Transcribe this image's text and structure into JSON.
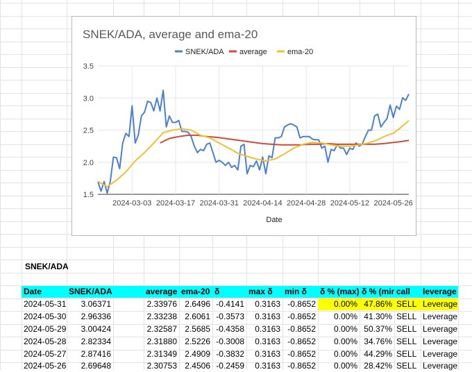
{
  "chart_data": {
    "type": "line",
    "title": "SNEK/ADA, average and ema-20",
    "xlabel": "Date",
    "ylabel": "",
    "ylim": [
      1.5,
      3.5
    ],
    "yticks": [
      "1.5",
      "2.0",
      "2.5",
      "3.0",
      "3.5"
    ],
    "x_start": "2024-02-21",
    "x_end": "2024-05-31",
    "xticks": [
      "2024-03-03",
      "2024-03-17",
      "2024-03-31",
      "2024-04-14",
      "2024-04-28",
      "2024-05-12",
      "2024-05-26"
    ],
    "grid": true,
    "legend_position": "top",
    "series": [
      {
        "name": "SNEK/ADA",
        "color": "#4a7fd4",
        "x": [
          "2024-02-21",
          "2024-02-22",
          "2024-02-23",
          "2024-02-24",
          "2024-02-25",
          "2024-02-26",
          "2024-02-27",
          "2024-02-28",
          "2024-02-29",
          "2024-03-01",
          "2024-03-02",
          "2024-03-03",
          "2024-03-04",
          "2024-03-05",
          "2024-03-06",
          "2024-03-07",
          "2024-03-08",
          "2024-03-09",
          "2024-03-10",
          "2024-03-11",
          "2024-03-12",
          "2024-03-13",
          "2024-03-14",
          "2024-03-15",
          "2024-03-16",
          "2024-03-17",
          "2024-03-18",
          "2024-03-19",
          "2024-03-20",
          "2024-03-21",
          "2024-03-22",
          "2024-03-23",
          "2024-03-24",
          "2024-03-25",
          "2024-03-26",
          "2024-03-27",
          "2024-03-28",
          "2024-03-29",
          "2024-03-30",
          "2024-03-31",
          "2024-04-01",
          "2024-04-02",
          "2024-04-03",
          "2024-04-04",
          "2024-04-05",
          "2024-04-06",
          "2024-04-07",
          "2024-04-08",
          "2024-04-09",
          "2024-04-10",
          "2024-04-11",
          "2024-04-12",
          "2024-04-13",
          "2024-04-14",
          "2024-04-15",
          "2024-04-16",
          "2024-04-17",
          "2024-04-18",
          "2024-04-19",
          "2024-04-20",
          "2024-04-21",
          "2024-04-22",
          "2024-04-23",
          "2024-04-24",
          "2024-04-25",
          "2024-04-26",
          "2024-04-27",
          "2024-04-28",
          "2024-04-29",
          "2024-04-30",
          "2024-05-01",
          "2024-05-02",
          "2024-05-03",
          "2024-05-04",
          "2024-05-05",
          "2024-05-06",
          "2024-05-07",
          "2024-05-08",
          "2024-05-09",
          "2024-05-10",
          "2024-05-11",
          "2024-05-12",
          "2024-05-13",
          "2024-05-14",
          "2024-05-15",
          "2024-05-16",
          "2024-05-17",
          "2024-05-18",
          "2024-05-19",
          "2024-05-20",
          "2024-05-21",
          "2024-05-22",
          "2024-05-23",
          "2024-05-24",
          "2024-05-25",
          "2024-05-26",
          "2024-05-27",
          "2024-05-28",
          "2024-05-29",
          "2024-05-30",
          "2024-05-31"
        ],
        "values": [
          1.7,
          1.55,
          1.7,
          1.52,
          1.7,
          2.08,
          2.07,
          1.9,
          2.3,
          2.45,
          2.4,
          2.88,
          2.3,
          2.42,
          2.72,
          2.78,
          2.95,
          2.93,
          2.8,
          3.0,
          2.8,
          3.12,
          2.55,
          2.72,
          2.62,
          2.62,
          2.65,
          2.48,
          2.48,
          2.47,
          2.4,
          2.25,
          2.15,
          2.2,
          2.18,
          2.28,
          2.3,
          2.15,
          2.0,
          2.03,
          2.0,
          1.95,
          2.0,
          1.92,
          1.95,
          1.88,
          2.25,
          2.28,
          1.82,
          1.95,
          1.93,
          2.02,
          1.88,
          2.08,
          1.82,
          2.1,
          2.07,
          2.38,
          2.38,
          2.4,
          2.55,
          2.58,
          2.6,
          2.58,
          2.55,
          2.38,
          2.4,
          2.4,
          2.4,
          2.36,
          2.35,
          2.35,
          2.22,
          2.25,
          2.0,
          2.2,
          2.18,
          2.28,
          2.22,
          2.22,
          2.12,
          2.22,
          2.2,
          2.3,
          2.25,
          2.28,
          2.4,
          2.5,
          2.5,
          2.72,
          2.75,
          2.55,
          2.62,
          2.68,
          2.89,
          2.69648,
          2.87416,
          2.82334,
          3.00424,
          2.96336,
          3.06371
        ]
      },
      {
        "name": "average",
        "color": "#d04a3c",
        "x": [
          "2024-03-12",
          "2024-03-15",
          "2024-03-18",
          "2024-03-21",
          "2024-03-24",
          "2024-03-27",
          "2024-03-30",
          "2024-04-02",
          "2024-04-05",
          "2024-04-08",
          "2024-04-11",
          "2024-04-14",
          "2024-04-17",
          "2024-04-20",
          "2024-04-23",
          "2024-04-26",
          "2024-04-29",
          "2024-05-02",
          "2024-05-05",
          "2024-05-08",
          "2024-05-11",
          "2024-05-14",
          "2024-05-17",
          "2024-05-20",
          "2024-05-23",
          "2024-05-26",
          "2024-05-27",
          "2024-05-28",
          "2024-05-29",
          "2024-05-30",
          "2024-05-31"
        ],
        "values": [
          2.3,
          2.37,
          2.4,
          2.42,
          2.42,
          2.4,
          2.39,
          2.37,
          2.35,
          2.33,
          2.31,
          2.29,
          2.28,
          2.27,
          2.27,
          2.27,
          2.28,
          2.28,
          2.29,
          2.28,
          2.28,
          2.28,
          2.28,
          2.28,
          2.29,
          2.30753,
          2.31349,
          2.3188,
          2.32587,
          2.33238,
          2.33976
        ]
      },
      {
        "name": "ema-20",
        "color": "#f0c030",
        "x": [
          "2024-02-21",
          "2024-02-24",
          "2024-02-27",
          "2024-03-01",
          "2024-03-04",
          "2024-03-07",
          "2024-03-10",
          "2024-03-13",
          "2024-03-16",
          "2024-03-19",
          "2024-03-22",
          "2024-03-25",
          "2024-03-28",
          "2024-03-31",
          "2024-04-03",
          "2024-04-06",
          "2024-04-09",
          "2024-04-12",
          "2024-04-15",
          "2024-04-18",
          "2024-04-21",
          "2024-04-24",
          "2024-04-27",
          "2024-04-30",
          "2024-05-03",
          "2024-05-06",
          "2024-05-09",
          "2024-05-12",
          "2024-05-15",
          "2024-05-18",
          "2024-05-21",
          "2024-05-24",
          "2024-05-26",
          "2024-05-27",
          "2024-05-28",
          "2024-05-29",
          "2024-05-30",
          "2024-05-31"
        ],
        "values": [
          1.7,
          1.62,
          1.72,
          1.85,
          2.02,
          2.15,
          2.3,
          2.46,
          2.5,
          2.52,
          2.5,
          2.42,
          2.38,
          2.3,
          2.22,
          2.14,
          2.09,
          2.05,
          2.02,
          2.05,
          2.13,
          2.22,
          2.28,
          2.31,
          2.3,
          2.27,
          2.25,
          2.25,
          2.27,
          2.3,
          2.35,
          2.42,
          2.4506,
          2.4909,
          2.5226,
          2.5685,
          2.6061,
          2.6496
        ]
      }
    ]
  },
  "section_title": "SNEK/ADA",
  "table": {
    "headers": [
      "Date",
      "SNEK/ADA",
      "",
      "average",
      "ema-20",
      "δ",
      "max δ",
      "min δ",
      "δ % (max)",
      "δ % (min)",
      "call",
      "leverage"
    ],
    "rows": [
      [
        "2024-05-31",
        "3.06371",
        "",
        "2.33976",
        "2.6496",
        "-0.4141",
        "0.3163",
        "-0.8652",
        "0.00%",
        "47.86%",
        "SELL",
        "Leverage"
      ],
      [
        "2024-05-30",
        "2.96336",
        "",
        "2.33238",
        "2.6061",
        "-0.3573",
        "0.3163",
        "-0.8652",
        "0.00%",
        "41.30%",
        "SELL",
        "Leverage"
      ],
      [
        "2024-05-29",
        "3.00424",
        "",
        "2.32587",
        "2.5685",
        "-0.4358",
        "0.3163",
        "-0.8652",
        "0.00%",
        "50.37%",
        "SELL",
        "Leverage"
      ],
      [
        "2024-05-28",
        "2.82334",
        "",
        "2.31880",
        "2.5226",
        "-0.3008",
        "0.3163",
        "-0.8652",
        "0.00%",
        "34.76%",
        "SELL",
        "Leverage"
      ],
      [
        "2024-05-27",
        "2.87416",
        "",
        "2.31349",
        "2.4909",
        "-0.3832",
        "0.3163",
        "-0.8652",
        "0.00%",
        "44.29%",
        "SELL",
        "Leverage"
      ],
      [
        "2024-05-26",
        "2.69648",
        "",
        "2.30753",
        "2.4506",
        "-0.2459",
        "0.3163",
        "-0.8652",
        "0.00%",
        "28.42%",
        "SELL",
        "Leverage"
      ]
    ]
  },
  "colors": {
    "header_bg": "#00ffff",
    "highlight": "#ffff00",
    "grid_line": "#e2e2e2"
  }
}
